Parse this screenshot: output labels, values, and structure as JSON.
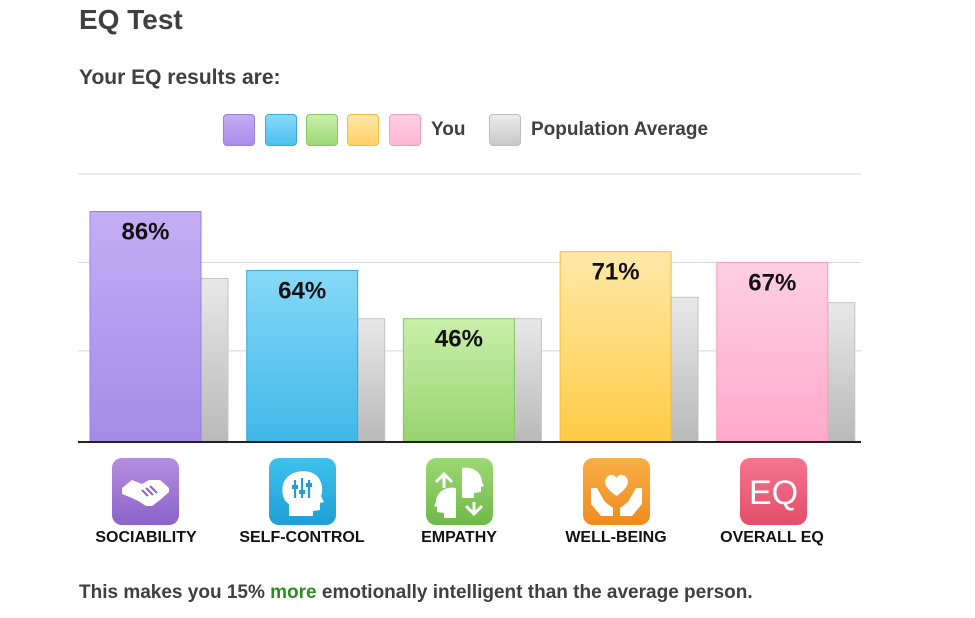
{
  "page": {
    "title": "EQ Test",
    "subtitle": "Your EQ results are:"
  },
  "legend": {
    "you_label": "You",
    "average_label": "Population Average",
    "you_colors": [
      "#a98cea",
      "#4cc0ee",
      "#9dd874",
      "#ffd065",
      "#ffb7d3"
    ],
    "average_color": "#c8c8c8"
  },
  "chart_data": {
    "type": "bar",
    "categories": [
      "SOCIABILITY",
      "SELF-CONTROL",
      "EMPATHY",
      "WELL-BEING",
      "OVERALL EQ"
    ],
    "series": [
      {
        "name": "You",
        "values": [
          86,
          64,
          46,
          71,
          67
        ],
        "labels": [
          "86%",
          "64%",
          "46%",
          "71%",
          "67%"
        ]
      },
      {
        "name": "Population Average",
        "values": [
          61,
          46,
          46,
          54,
          52
        ]
      }
    ],
    "ylim": [
      0,
      100
    ],
    "grid": true,
    "legend_position": "top-center",
    "colors": {
      "you": [
        {
          "top": "#c3aef4",
          "bottom": "#a68ae9",
          "border": "#9a7ee0"
        },
        {
          "top": "#86d9f7",
          "bottom": "#3fb7e8",
          "border": "#3aa9da"
        },
        {
          "top": "#c9efaa",
          "bottom": "#98d36e",
          "border": "#89c562"
        },
        {
          "top": "#ffe9a8",
          "bottom": "#ffcb45",
          "border": "#f2bc3c"
        },
        {
          "top": "#ffcfe1",
          "bottom": "#ffa9cb",
          "border": "#f59bbf"
        }
      ],
      "average": {
        "top": "#e8e8e8",
        "bottom": "#b9b9b9"
      }
    }
  },
  "icons": [
    {
      "name": "handshake-icon",
      "color_top": "#b58fe0",
      "color_bottom": "#8b62c9"
    },
    {
      "name": "head-controls-icon",
      "color_top": "#3fc1ee",
      "color_bottom": "#1f9fd6"
    },
    {
      "name": "faces-exchange-icon",
      "color_top": "#9dd874",
      "color_bottom": "#6fb94a"
    },
    {
      "name": "heart-hands-icon",
      "color_top": "#f8b048",
      "color_bottom": "#ef8a1d"
    },
    {
      "name": "eq-text-icon",
      "color_top": "#f4768e",
      "color_bottom": "#e24e6a",
      "text": "EQ"
    }
  ],
  "footer": {
    "prefix": "This makes you 15% ",
    "highlight": "more",
    "suffix": " emotionally intelligent than the average person."
  }
}
